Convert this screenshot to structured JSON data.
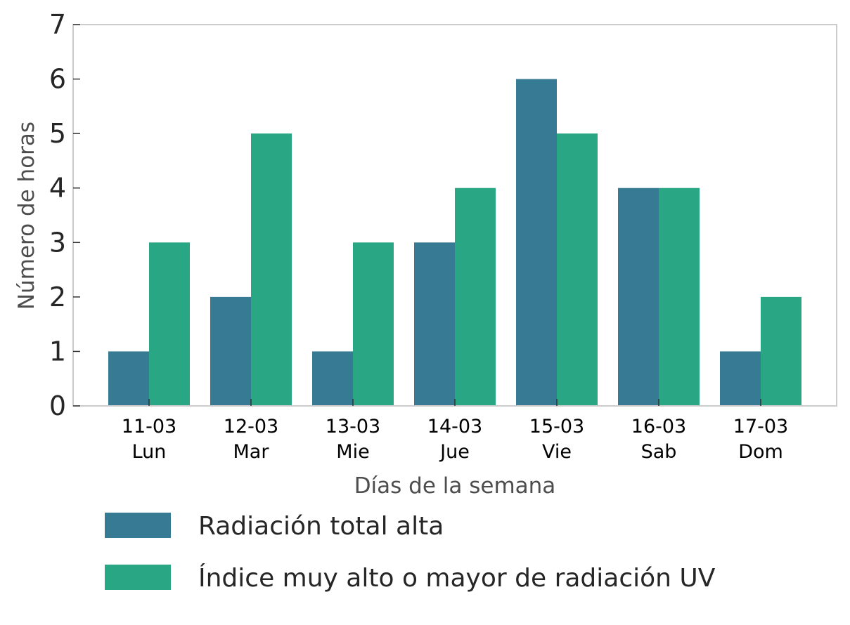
{
  "chart_data": {
    "type": "bar",
    "title": "",
    "xlabel": "Días de la semana",
    "ylabel": "Número de horas",
    "categories": [
      {
        "date": "11-03",
        "day": "Lun"
      },
      {
        "date": "12-03",
        "day": "Mar"
      },
      {
        "date": "13-03",
        "day": "Mie"
      },
      {
        "date": "14-03",
        "day": "Jue"
      },
      {
        "date": "15-03",
        "day": "Vie"
      },
      {
        "date": "16-03",
        "day": "Sab"
      },
      {
        "date": "17-03",
        "day": "Dom"
      }
    ],
    "series": [
      {
        "name": "Radiación total alta",
        "color": "#367a94",
        "values": [
          1,
          2,
          1,
          3,
          6,
          4,
          1
        ]
      },
      {
        "name": "Índice muy alto o mayor de radiación UV",
        "color": "#29a784",
        "values": [
          3,
          5,
          3,
          4,
          5,
          4,
          2
        ]
      }
    ],
    "ylim": [
      0,
      7
    ],
    "yticks": [
      0,
      1,
      2,
      3,
      4,
      5,
      6,
      7
    ],
    "grid": false,
    "legend": "bottom"
  }
}
